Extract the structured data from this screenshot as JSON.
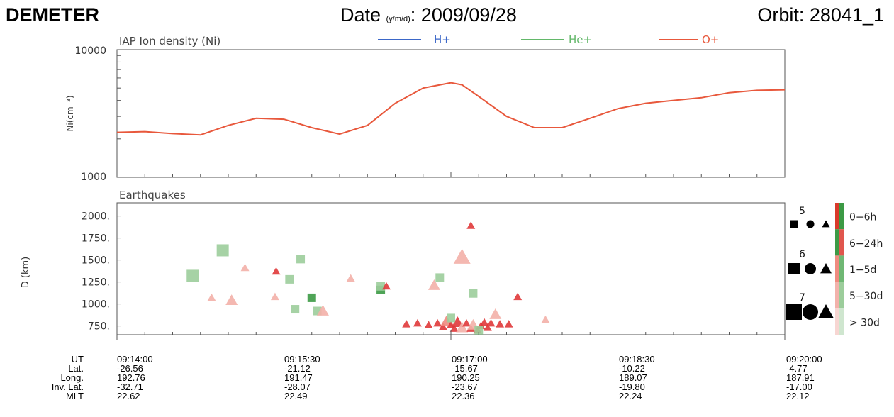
{
  "header": {
    "title": "DEMETER",
    "date_label": "Date",
    "date_sub": "(y/m/d)",
    "date_value": ": 2009/09/28",
    "orbit": "Orbit: 28041_1"
  },
  "colors": {
    "h_plus": "#3b67c8",
    "he_plus": "#63b86a",
    "o_plus": "#e8583c",
    "eq_red": "#e0383a",
    "eq_green": "#3d9a48"
  },
  "chart_data": [
    {
      "type": "line",
      "title": "IAP Ion density (Ni)",
      "ylabel": "Ni(cm⁻³)",
      "yscale": "log",
      "ylim": [
        1000,
        10000
      ],
      "yticks": [
        "10000",
        "1000"
      ],
      "xlim": [
        "09:14:00",
        "09:20:00"
      ],
      "legend_placement": "top",
      "legend": [
        "H+",
        "He+",
        "O+"
      ],
      "series": [
        {
          "name": "O+",
          "color": "#e8583c",
          "x_minutes": [
            0,
            0.25,
            0.5,
            0.75,
            1.0,
            1.25,
            1.5,
            1.75,
            2.0,
            2.25,
            2.5,
            2.75,
            3.0,
            3.1,
            3.25,
            3.5,
            3.75,
            4.0,
            4.25,
            4.5,
            4.75,
            5.0,
            5.25,
            5.5,
            5.75,
            6.0
          ],
          "values": [
            2250,
            2280,
            2200,
            2150,
            2550,
            2900,
            2850,
            2450,
            2180,
            2550,
            3800,
            5000,
            5500,
            5300,
            4300,
            3000,
            2450,
            2450,
            2900,
            3450,
            3800,
            4000,
            4200,
            4600,
            4800,
            4850
          ]
        }
      ]
    },
    {
      "type": "scatter",
      "title": "Earthquakes",
      "ylabel": "D (km)",
      "ylim": [
        650,
        2150
      ],
      "yticks": [
        "2000.",
        "1750.",
        "1500.",
        "1250.",
        "1000.",
        "750."
      ],
      "xlim": [
        "09:14:00",
        "09:20:00"
      ],
      "legend_magnitudes": [
        "5",
        "6",
        "7"
      ],
      "legend_ages": [
        "0−6h",
        "6−24h",
        "1−5d",
        "5−30d",
        "> 30d"
      ],
      "age_colors": [
        "#d93a2b",
        "#3c9a45",
        "#ef8b80",
        "#9ccd9b",
        "#f6d1cd"
      ],
      "points": [
        {
          "x": 0.68,
          "y": 1320,
          "shape": "square",
          "mag": 6,
          "color": "#9ccd9b"
        },
        {
          "x": 0.95,
          "y": 1610,
          "shape": "square",
          "mag": 6,
          "color": "#9ccd9b"
        },
        {
          "x": 0.85,
          "y": 1070,
          "shape": "triangle",
          "mag": 5,
          "color": "#f3b0a8"
        },
        {
          "x": 1.03,
          "y": 1040,
          "shape": "triangle",
          "mag": 6,
          "color": "#f3b0a8"
        },
        {
          "x": 1.15,
          "y": 1410,
          "shape": "triangle",
          "mag": 5,
          "color": "#f3b0a8"
        },
        {
          "x": 1.43,
          "y": 1370,
          "shape": "triangle",
          "mag": 5,
          "color": "#e0383a"
        },
        {
          "x": 1.42,
          "y": 1080,
          "shape": "triangle",
          "mag": 5,
          "color": "#f3b0a8"
        },
        {
          "x": 1.55,
          "y": 1280,
          "shape": "square",
          "mag": 5,
          "color": "#9ccd9b"
        },
        {
          "x": 1.65,
          "y": 1510,
          "shape": "square",
          "mag": 5,
          "color": "#9ccd9b"
        },
        {
          "x": 1.6,
          "y": 940,
          "shape": "square",
          "mag": 5,
          "color": "#9ccd9b"
        },
        {
          "x": 1.75,
          "y": 1070,
          "shape": "square",
          "mag": 5,
          "color": "#3c9a45"
        },
        {
          "x": 1.8,
          "y": 920,
          "shape": "square",
          "mag": 5,
          "color": "#9ccd9b"
        },
        {
          "x": 1.85,
          "y": 920,
          "shape": "triangle",
          "mag": 6,
          "color": "#f3b0a8"
        },
        {
          "x": 2.1,
          "y": 1290,
          "shape": "triangle",
          "mag": 5,
          "color": "#f3b0a8"
        },
        {
          "x": 2.37,
          "y": 1160,
          "shape": "square",
          "mag": 5,
          "color": "#3c9a45"
        },
        {
          "x": 2.37,
          "y": 1200,
          "shape": "square",
          "mag": 5,
          "color": "#9ccd9b"
        },
        {
          "x": 2.42,
          "y": 1200,
          "shape": "triangle",
          "mag": 5,
          "color": "#e0383a"
        },
        {
          "x": 2.9,
          "y": 1300,
          "shape": "square",
          "mag": 5,
          "color": "#9ccd9b"
        },
        {
          "x": 2.85,
          "y": 1210,
          "shape": "triangle",
          "mag": 6,
          "color": "#f3b0a8"
        },
        {
          "x": 3.1,
          "y": 1530,
          "shape": "triangle",
          "mag": 7,
          "color": "#f3b0a8"
        },
        {
          "x": 3.18,
          "y": 1890,
          "shape": "triangle",
          "mag": 5,
          "color": "#e0383a"
        },
        {
          "x": 3.2,
          "y": 1120,
          "shape": "square",
          "mag": 5,
          "color": "#9ccd9b"
        },
        {
          "x": 3.6,
          "y": 1080,
          "shape": "triangle",
          "mag": 5,
          "color": "#e0383a"
        },
        {
          "x": 3.4,
          "y": 880,
          "shape": "triangle",
          "mag": 6,
          "color": "#f3b0a8"
        },
        {
          "x": 3.85,
          "y": 820,
          "shape": "triangle",
          "mag": 5,
          "color": "#f3b0a8"
        },
        {
          "x": 2.6,
          "y": 770,
          "shape": "triangle",
          "mag": 5,
          "color": "#e0383a"
        },
        {
          "x": 2.7,
          "y": 780,
          "shape": "triangle",
          "mag": 5,
          "color": "#e0383a"
        },
        {
          "x": 2.8,
          "y": 760,
          "shape": "triangle",
          "mag": 5,
          "color": "#e0383a"
        },
        {
          "x": 2.88,
          "y": 780,
          "shape": "triangle",
          "mag": 5,
          "color": "#e0383a"
        },
        {
          "x": 2.93,
          "y": 740,
          "shape": "triangle",
          "mag": 5,
          "color": "#e0383a"
        },
        {
          "x": 2.96,
          "y": 800,
          "shape": "triangle",
          "mag": 6,
          "color": "#ef8b80"
        },
        {
          "x": 3.0,
          "y": 760,
          "shape": "triangle",
          "mag": 5,
          "color": "#e0383a"
        },
        {
          "x": 3.03,
          "y": 720,
          "shape": "triangle",
          "mag": 5,
          "color": "#e0383a"
        },
        {
          "x": 3.06,
          "y": 790,
          "shape": "triangle",
          "mag": 6,
          "color": "#e0383a"
        },
        {
          "x": 3.1,
          "y": 730,
          "shape": "triangle",
          "mag": 6,
          "color": "#f3b0a8"
        },
        {
          "x": 3.14,
          "y": 780,
          "shape": "triangle",
          "mag": 5,
          "color": "#e0383a"
        },
        {
          "x": 3.18,
          "y": 720,
          "shape": "triangle",
          "mag": 5,
          "color": "#e0383a"
        },
        {
          "x": 3.2,
          "y": 760,
          "shape": "triangle",
          "mag": 6,
          "color": "#f3b0a8"
        },
        {
          "x": 3.24,
          "y": 700,
          "shape": "triangle",
          "mag": 5,
          "color": "#e0383a"
        },
        {
          "x": 3.27,
          "y": 750,
          "shape": "triangle",
          "mag": 5,
          "color": "#e0383a"
        },
        {
          "x": 3.3,
          "y": 790,
          "shape": "triangle",
          "mag": 5,
          "color": "#e0383a"
        },
        {
          "x": 3.33,
          "y": 730,
          "shape": "triangle",
          "mag": 5,
          "color": "#e0383a"
        },
        {
          "x": 3.36,
          "y": 780,
          "shape": "triangle",
          "mag": 5,
          "color": "#e0383a"
        },
        {
          "x": 3.44,
          "y": 770,
          "shape": "triangle",
          "mag": 5,
          "color": "#e0383a"
        },
        {
          "x": 3.52,
          "y": 770,
          "shape": "triangle",
          "mag": 5,
          "color": "#e0383a"
        },
        {
          "x": 3.25,
          "y": 700,
          "shape": "square",
          "mag": 5,
          "color": "#9ccd9b"
        },
        {
          "x": 3.0,
          "y": 840,
          "shape": "square",
          "mag": 5,
          "color": "#9ccd9b"
        }
      ]
    }
  ],
  "table": {
    "row_labels": [
      "UT",
      "Lat.",
      "Long.",
      "Inv. Lat.",
      "MLT"
    ],
    "columns": [
      [
        "09:14:00",
        "-26.56",
        "192.76",
        "-32.71",
        "22.62"
      ],
      [
        "09:15:30",
        "-21.12",
        "191.47",
        "-28.07",
        "22.49"
      ],
      [
        "09:17:00",
        "-15.67",
        "190.25",
        "-23.67",
        "22.36"
      ],
      [
        "09:18:30",
        "-10.22",
        "189.07",
        "-19.80",
        "22.24"
      ],
      [
        "09:20:00",
        "-4.77",
        "187.91",
        "-17.00",
        "22.12"
      ]
    ]
  }
}
